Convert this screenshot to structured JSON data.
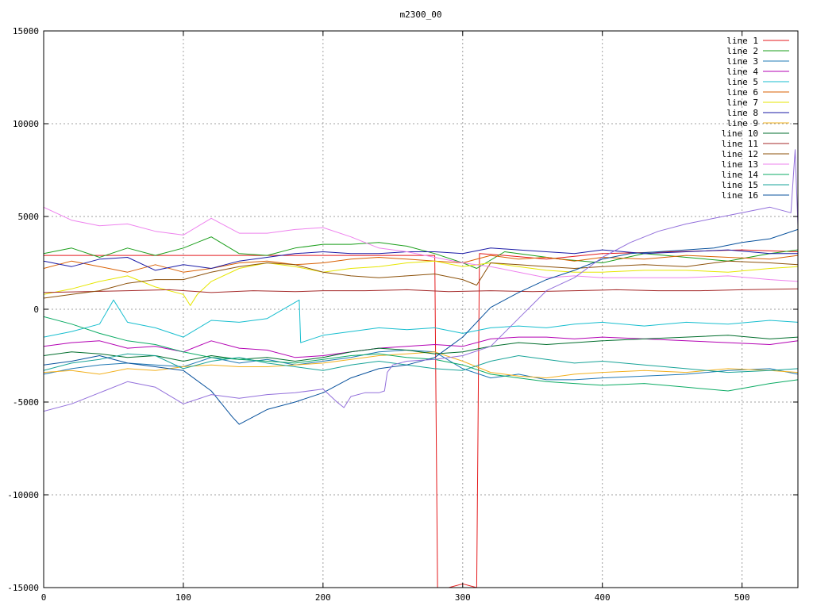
{
  "chart_data": {
    "type": "line",
    "title": "m2300_00",
    "xlabel": "",
    "ylabel": "",
    "xlim": [
      0,
      540
    ],
    "ylim": [
      -15000,
      15000
    ],
    "xticks": [
      0,
      100,
      200,
      300,
      400,
      500
    ],
    "yticks": [
      -15000,
      -10000,
      -5000,
      0,
      5000,
      10000,
      15000
    ],
    "xtick_labels": [
      "0",
      "100",
      "200",
      "300",
      "400",
      "500"
    ],
    "ytick_labels": [
      "-15000",
      "-10000",
      "-5000",
      "0",
      "5000",
      "10000",
      "15000"
    ],
    "grid": true,
    "legend_position": "top-right",
    "series": [
      {
        "name": "line 1",
        "color": "#e41a1c",
        "x": [
          0,
          100,
          200,
          250,
          280,
          282,
          290,
          300,
          310,
          312,
          330,
          360,
          400,
          450,
          500,
          540
        ],
        "y": [
          2900,
          2900,
          2900,
          2900,
          2900,
          -15000,
          -15000,
          -14800,
          -15000,
          3000,
          2900,
          2700,
          3000,
          3100,
          3200,
          3100
        ]
      },
      {
        "name": "line 2",
        "color": "#1a9e1a",
        "x": [
          0,
          20,
          40,
          60,
          80,
          100,
          120,
          140,
          160,
          180,
          200,
          220,
          240,
          260,
          280,
          300,
          310,
          330,
          350,
          370,
          400,
          430,
          460,
          490,
          520,
          540
        ],
        "y": [
          3000,
          3300,
          2800,
          3300,
          2900,
          3300,
          3900,
          3000,
          2900,
          3300,
          3500,
          3500,
          3600,
          3400,
          3000,
          2500,
          2200,
          3100,
          2900,
          2700,
          2500,
          3000,
          2800,
          2600,
          3000,
          3200
        ]
      },
      {
        "name": "line 3",
        "color": "#1f78b4",
        "x": [
          0,
          20,
          40,
          60,
          80,
          100,
          120,
          140,
          160,
          180,
          200,
          220,
          240,
          260,
          280,
          300,
          320,
          340,
          360,
          380,
          400,
          430,
          460,
          490,
          520,
          540
        ],
        "y": [
          -3500,
          -3200,
          -3000,
          -2900,
          -3000,
          -3100,
          -2600,
          -2900,
          -2700,
          -3000,
          -2800,
          -2600,
          -2300,
          -2200,
          -2300,
          -3200,
          -3700,
          -3500,
          -3800,
          -3800,
          -3700,
          -3600,
          -3500,
          -3300,
          -3200,
          -3500
        ]
      },
      {
        "name": "line 4",
        "color": "#b300b3",
        "x": [
          0,
          20,
          40,
          60,
          80,
          100,
          120,
          140,
          160,
          180,
          200,
          220,
          240,
          260,
          280,
          300,
          320,
          340,
          360,
          380,
          400,
          430,
          460,
          490,
          520,
          540
        ],
        "y": [
          -2000,
          -1800,
          -1700,
          -2100,
          -2000,
          -2300,
          -1700,
          -2100,
          -2200,
          -2600,
          -2500,
          -2300,
          -2100,
          -2000,
          -1900,
          -2000,
          -1600,
          -1500,
          -1500,
          -1600,
          -1500,
          -1600,
          -1700,
          -1800,
          -1900,
          -1700
        ]
      },
      {
        "name": "line 5",
        "color": "#17becf",
        "x": [
          0,
          20,
          40,
          50,
          60,
          80,
          100,
          120,
          140,
          160,
          183,
          184,
          200,
          220,
          240,
          260,
          280,
          300,
          320,
          340,
          360,
          380,
          400,
          430,
          460,
          490,
          520,
          540
        ],
        "y": [
          -1500,
          -1200,
          -800,
          500,
          -700,
          -1000,
          -1500,
          -600,
          -700,
          -500,
          500,
          -1800,
          -1400,
          -1200,
          -1000,
          -1100,
          -1000,
          -1300,
          -1000,
          -900,
          -1000,
          -800,
          -700,
          -900,
          -700,
          -800,
          -600,
          -700
        ]
      },
      {
        "name": "line 6",
        "color": "#d95f02",
        "x": [
          0,
          20,
          40,
          60,
          80,
          100,
          120,
          140,
          160,
          180,
          200,
          220,
          240,
          260,
          280,
          300,
          320,
          340,
          360,
          380,
          400,
          430,
          460,
          490,
          520,
          540
        ],
        "y": [
          2200,
          2600,
          2300,
          2000,
          2400,
          2000,
          2200,
          2500,
          2600,
          2400,
          2500,
          2700,
          2800,
          2700,
          2600,
          2500,
          2900,
          2700,
          2800,
          2600,
          2800,
          2700,
          2900,
          2800,
          2700,
          2900
        ]
      },
      {
        "name": "line 7",
        "color": "#e6e600",
        "x": [
          0,
          20,
          40,
          60,
          80,
          100,
          105,
          110,
          120,
          140,
          160,
          180,
          200,
          220,
          240,
          260,
          280,
          300,
          320,
          340,
          360,
          380,
          400,
          430,
          460,
          490,
          520,
          540
        ],
        "y": [
          800,
          1100,
          1500,
          1800,
          1200,
          800,
          200,
          800,
          1500,
          2200,
          2500,
          2300,
          2000,
          2200,
          2300,
          2500,
          2600,
          2300,
          2500,
          2300,
          2100,
          2000,
          2000,
          2100,
          2100,
          2000,
          2200,
          2300
        ]
      },
      {
        "name": "line 8",
        "color": "#1a1aa6",
        "x": [
          0,
          20,
          40,
          60,
          80,
          100,
          120,
          140,
          160,
          180,
          200,
          220,
          240,
          260,
          280,
          300,
          320,
          340,
          360,
          380,
          400,
          430,
          460,
          490,
          520,
          540
        ],
        "y": [
          2600,
          2300,
          2700,
          2800,
          2100,
          2400,
          2200,
          2600,
          2800,
          3000,
          3100,
          3000,
          3000,
          3100,
          3100,
          3000,
          3300,
          3200,
          3100,
          3000,
          3200,
          3000,
          3100,
          3200,
          3000,
          3000
        ]
      },
      {
        "name": "line 9",
        "color": "#f2b01e",
        "x": [
          0,
          20,
          40,
          60,
          80,
          100,
          120,
          140,
          160,
          180,
          200,
          220,
          240,
          260,
          280,
          300,
          320,
          340,
          360,
          380,
          400,
          430,
          460,
          490,
          520,
          540
        ],
        "y": [
          -3400,
          -3300,
          -3500,
          -3200,
          -3300,
          -3100,
          -3000,
          -3100,
          -3100,
          -3000,
          -2900,
          -2700,
          -2500,
          -2400,
          -2300,
          -2800,
          -3400,
          -3600,
          -3700,
          -3500,
          -3400,
          -3300,
          -3400,
          -3200,
          -3300,
          -3400
        ]
      },
      {
        "name": "line 10",
        "color": "#006d2c",
        "x": [
          0,
          20,
          40,
          60,
          80,
          100,
          120,
          140,
          160,
          180,
          200,
          220,
          240,
          260,
          280,
          300,
          320,
          340,
          360,
          380,
          400,
          430,
          460,
          490,
          520,
          540
        ],
        "y": [
          -2500,
          -2300,
          -2400,
          -2600,
          -2500,
          -2800,
          -2500,
          -2700,
          -2600,
          -2800,
          -2600,
          -2300,
          -2100,
          -2200,
          -2400,
          -2300,
          -2000,
          -1800,
          -1900,
          -1800,
          -1700,
          -1600,
          -1500,
          -1400,
          -1600,
          -1500
        ]
      },
      {
        "name": "line 11",
        "color": "#a52a2a",
        "x": [
          0,
          30,
          60,
          90,
          120,
          150,
          180,
          200,
          230,
          260,
          290,
          320,
          350,
          380,
          410,
          440,
          470,
          500,
          540
        ],
        "y": [
          900,
          950,
          1000,
          1050,
          900,
          1000,
          950,
          1000,
          1000,
          1050,
          950,
          1000,
          950,
          1000,
          1050,
          1000,
          1000,
          1050,
          1100
        ]
      },
      {
        "name": "line 12",
        "color": "#8c510a",
        "x": [
          0,
          20,
          40,
          60,
          80,
          100,
          120,
          140,
          160,
          180,
          200,
          220,
          240,
          260,
          280,
          300,
          310,
          320,
          340,
          360,
          380,
          400,
          430,
          460,
          490,
          520,
          540
        ],
        "y": [
          600,
          800,
          1000,
          1400,
          1600,
          1600,
          2000,
          2300,
          2500,
          2400,
          2000,
          1800,
          1700,
          1800,
          1900,
          1600,
          1300,
          2500,
          2400,
          2300,
          2200,
          2300,
          2400,
          2300,
          2600,
          2500,
          2400
        ]
      },
      {
        "name": "line 13",
        "color": "#ee82ee",
        "x": [
          0,
          20,
          40,
          60,
          80,
          100,
          120,
          140,
          160,
          180,
          200,
          220,
          240,
          260,
          280,
          300,
          320,
          340,
          360,
          380,
          400,
          430,
          460,
          490,
          520,
          540
        ],
        "y": [
          5500,
          4800,
          4500,
          4600,
          4200,
          4000,
          4900,
          4100,
          4100,
          4300,
          4400,
          3900,
          3300,
          3100,
          2800,
          2500,
          2300,
          2000,
          1700,
          1800,
          1700,
          1700,
          1700,
          1800,
          1600,
          1500
        ]
      },
      {
        "name": "line 14",
        "color": "#0bab64",
        "x": [
          0,
          20,
          40,
          60,
          80,
          100,
          120,
          140,
          160,
          180,
          200,
          220,
          240,
          260,
          280,
          300,
          320,
          340,
          360,
          380,
          400,
          430,
          460,
          490,
          520,
          540
        ],
        "y": [
          -400,
          -800,
          -1300,
          -1700,
          -1900,
          -2300,
          -2600,
          -2700,
          -2800,
          -2900,
          -2700,
          -2500,
          -2400,
          -2600,
          -2700,
          -3000,
          -3500,
          -3700,
          -3900,
          -4000,
          -4100,
          -4000,
          -4200,
          -4400,
          -4000,
          -3800
        ]
      },
      {
        "name": "line 15",
        "color": "#17a398",
        "x": [
          0,
          20,
          40,
          60,
          80,
          100,
          120,
          140,
          160,
          180,
          200,
          220,
          240,
          260,
          280,
          300,
          320,
          340,
          360,
          380,
          400,
          430,
          460,
          490,
          520,
          540
        ],
        "y": [
          -3300,
          -2900,
          -2700,
          -2400,
          -2500,
          -3200,
          -2800,
          -2600,
          -2900,
          -3100,
          -3300,
          -3000,
          -2800,
          -3000,
          -3200,
          -3300,
          -2800,
          -2500,
          -2700,
          -2900,
          -2800,
          -3000,
          -3200,
          -3400,
          -3300,
          -3200
        ]
      },
      {
        "name": "line 16",
        "color": "#08519c",
        "x": [
          0,
          20,
          40,
          60,
          80,
          100,
          120,
          135,
          140,
          160,
          180,
          200,
          220,
          240,
          260,
          280,
          300,
          320,
          340,
          360,
          380,
          400,
          420,
          440,
          460,
          480,
          500,
          520,
          540
        ],
        "y": [
          -3000,
          -2800,
          -2500,
          -2900,
          -3100,
          -3300,
          -4400,
          -5800,
          -6200,
          -5400,
          -5000,
          -4500,
          -3700,
          -3200,
          -3000,
          -2600,
          -1500,
          100,
          900,
          1600,
          2100,
          2700,
          3000,
          3100,
          3200,
          3300,
          3600,
          3800,
          4300
        ]
      },
      {
        "name": "",
        "color": "#9370db",
        "x": [
          0,
          20,
          40,
          60,
          80,
          100,
          120,
          140,
          160,
          180,
          200,
          210,
          215,
          220,
          230,
          240,
          244,
          246,
          250,
          260,
          280,
          300,
          320,
          340,
          360,
          380,
          400,
          420,
          440,
          460,
          480,
          500,
          520,
          535,
          538,
          540
        ],
        "y": [
          -5500,
          -5100,
          -4500,
          -3900,
          -4200,
          -5100,
          -4600,
          -4800,
          -4600,
          -4500,
          -4300,
          -5000,
          -5300,
          -4700,
          -4500,
          -4500,
          -4400,
          -3400,
          -3000,
          -2800,
          -2700,
          -2500,
          -2000,
          -500,
          1000,
          1700,
          2800,
          3600,
          4200,
          4600,
          4900,
          5200,
          5500,
          5200,
          8600,
          4500
        ]
      }
    ]
  }
}
